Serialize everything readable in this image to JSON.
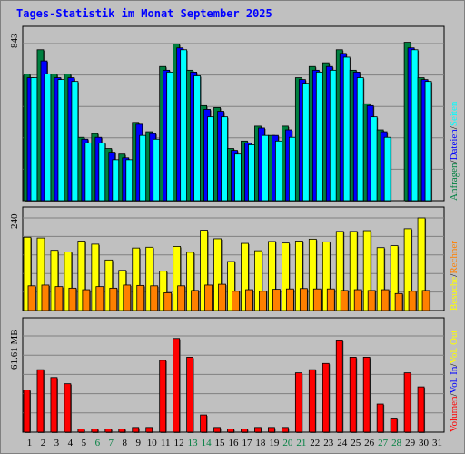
{
  "title": "Tages-Statistik im Monat September 2025",
  "colors": {
    "background": "#c0c0c0",
    "anfragen": "#008040",
    "dateien": "#0000ff",
    "seiten": "#00ffff",
    "besuche": "#ffff00",
    "rechner": "#ff8000",
    "volumen": "#ff0000",
    "weekend_day": "#008040",
    "weekday_day": "#000000"
  },
  "chart_data": [
    {
      "type": "bar",
      "title": "Tages-Statistik im Monat September 2025",
      "panel": "hits",
      "y_max_label": "843",
      "ylim": [
        0,
        843
      ],
      "grid": true,
      "right_label": [
        {
          "text": "Anfragen",
          "color": "#008040"
        },
        {
          "text": "/",
          "color": "#000000"
        },
        {
          "text": "Dateien",
          "color": "#0000ff"
        },
        {
          "text": "/",
          "color": "#000000"
        },
        {
          "text": "Seiten",
          "color": "#00ffff"
        }
      ],
      "categories": [
        "1",
        "2",
        "3",
        "4",
        "5",
        "6",
        "7",
        "8",
        "9",
        "10",
        "11",
        "12",
        "13",
        "14",
        "15",
        "16",
        "17",
        "18",
        "19",
        "20",
        "21",
        "22",
        "23",
        "24",
        "25",
        "26",
        "27",
        "28",
        "29",
        "30",
        "31"
      ],
      "series": [
        {
          "name": "Anfragen",
          "color": "#008040",
          "values": [
            680,
            810,
            680,
            680,
            340,
            360,
            280,
            250,
            420,
            370,
            720,
            840,
            700,
            510,
            500,
            280,
            320,
            400,
            350,
            400,
            660,
            720,
            740,
            810,
            700,
            520,
            380,
            0,
            850,
            660,
            0
          ]
        },
        {
          "name": "Dateien",
          "color": "#0000ff",
          "values": [
            660,
            750,
            660,
            660,
            330,
            340,
            260,
            230,
            410,
            360,
            700,
            820,
            690,
            490,
            480,
            270,
            310,
            390,
            350,
            380,
            650,
            700,
            720,
            790,
            690,
            510,
            370,
            0,
            820,
            650,
            0
          ]
        },
        {
          "name": "Seiten",
          "color": "#00ffff",
          "values": [
            660,
            680,
            650,
            640,
            310,
            310,
            220,
            220,
            350,
            330,
            690,
            810,
            670,
            450,
            450,
            250,
            300,
            350,
            320,
            340,
            630,
            690,
            700,
            770,
            660,
            450,
            340,
            0,
            810,
            640,
            0
          ]
        }
      ]
    },
    {
      "type": "bar",
      "panel": "visits",
      "y_max_label": "240",
      "ylim": [
        0,
        240
      ],
      "grid": true,
      "right_label": [
        {
          "text": "Besuche",
          "color": "#ffff00"
        },
        {
          "text": "/",
          "color": "#000000"
        },
        {
          "text": "Rechner",
          "color": "#ff8000"
        }
      ],
      "categories": [
        "1",
        "2",
        "3",
        "4",
        "5",
        "6",
        "7",
        "8",
        "9",
        "10",
        "11",
        "12",
        "13",
        "14",
        "15",
        "16",
        "17",
        "18",
        "19",
        "20",
        "21",
        "22",
        "23",
        "24",
        "25",
        "26",
        "27",
        "28",
        "29",
        "30",
        "31"
      ],
      "series": [
        {
          "name": "Besuche",
          "color": "#ffff00",
          "values": [
            190,
            188,
            156,
            152,
            180,
            172,
            131,
            104,
            162,
            164,
            102,
            166,
            151,
            208,
            186,
            127,
            174,
            155,
            179,
            175,
            180,
            185,
            178,
            205,
            205,
            207,
            163,
            168,
            212,
            240,
            0
          ]
        },
        {
          "name": "Rechner",
          "color": "#ff8000",
          "values": [
            64,
            66,
            62,
            58,
            54,
            62,
            58,
            66,
            65,
            64,
            46,
            64,
            52,
            66,
            68,
            50,
            54,
            50,
            55,
            56,
            57,
            56,
            56,
            52,
            54,
            52,
            54,
            44,
            50,
            52,
            0
          ]
        }
      ]
    },
    {
      "type": "bar",
      "panel": "volume",
      "y_max_label": "61.61 MB",
      "ylim": [
        0,
        61.61
      ],
      "grid": true,
      "right_label": [
        {
          "text": "Volumen",
          "color": "#ff0000"
        },
        {
          "text": "/",
          "color": "#000000"
        },
        {
          "text": "Vol. In",
          "color": "#0000ff"
        },
        {
          "text": "/",
          "color": "#000000"
        },
        {
          "text": "Vol. Out",
          "color": "#ffff00"
        }
      ],
      "categories": [
        "1",
        "2",
        "3",
        "4",
        "5",
        "6",
        "7",
        "8",
        "9",
        "10",
        "11",
        "12",
        "13",
        "14",
        "15",
        "16",
        "17",
        "18",
        "19",
        "20",
        "21",
        "22",
        "23",
        "24",
        "25",
        "26",
        "27",
        "28",
        "29",
        "30",
        "31"
      ],
      "series": [
        {
          "name": "Volumen",
          "color": "#ff0000",
          "values": [
            27,
            40,
            35,
            31,
            2,
            2,
            2,
            2,
            3,
            3,
            46,
            60,
            48,
            11,
            3,
            2,
            2,
            3,
            3,
            3,
            38,
            40,
            44,
            59,
            48,
            48,
            18,
            9,
            38,
            29,
            0
          ]
        }
      ]
    }
  ],
  "days": [
    "1",
    "2",
    "3",
    "4",
    "5",
    "6",
    "7",
    "8",
    "9",
    "10",
    "11",
    "12",
    "13",
    "14",
    "15",
    "16",
    "17",
    "18",
    "19",
    "20",
    "21",
    "22",
    "23",
    "24",
    "25",
    "26",
    "27",
    "28",
    "29",
    "30",
    "31"
  ],
  "weekend": [
    6,
    7,
    13,
    14,
    20,
    21,
    27,
    28
  ]
}
